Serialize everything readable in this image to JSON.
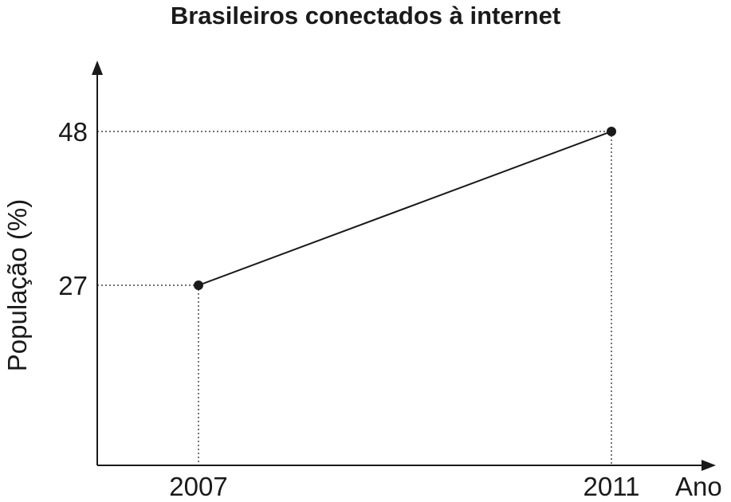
{
  "chart_data": {
    "type": "line",
    "title": "Brasileiros conectados à internet",
    "xlabel": "Ano",
    "ylabel": "População (%)",
    "x": [
      2007,
      2011
    ],
    "series": [
      {
        "values": [
          27,
          48
        ]
      }
    ],
    "x_ticks": [
      "2007",
      "2011"
    ],
    "y_ticks": [
      "27",
      "48"
    ],
    "grid": false,
    "guide_lines": "dotted",
    "colors": {
      "line": "#1a1a1a",
      "axis": "#1a1a1a"
    }
  }
}
